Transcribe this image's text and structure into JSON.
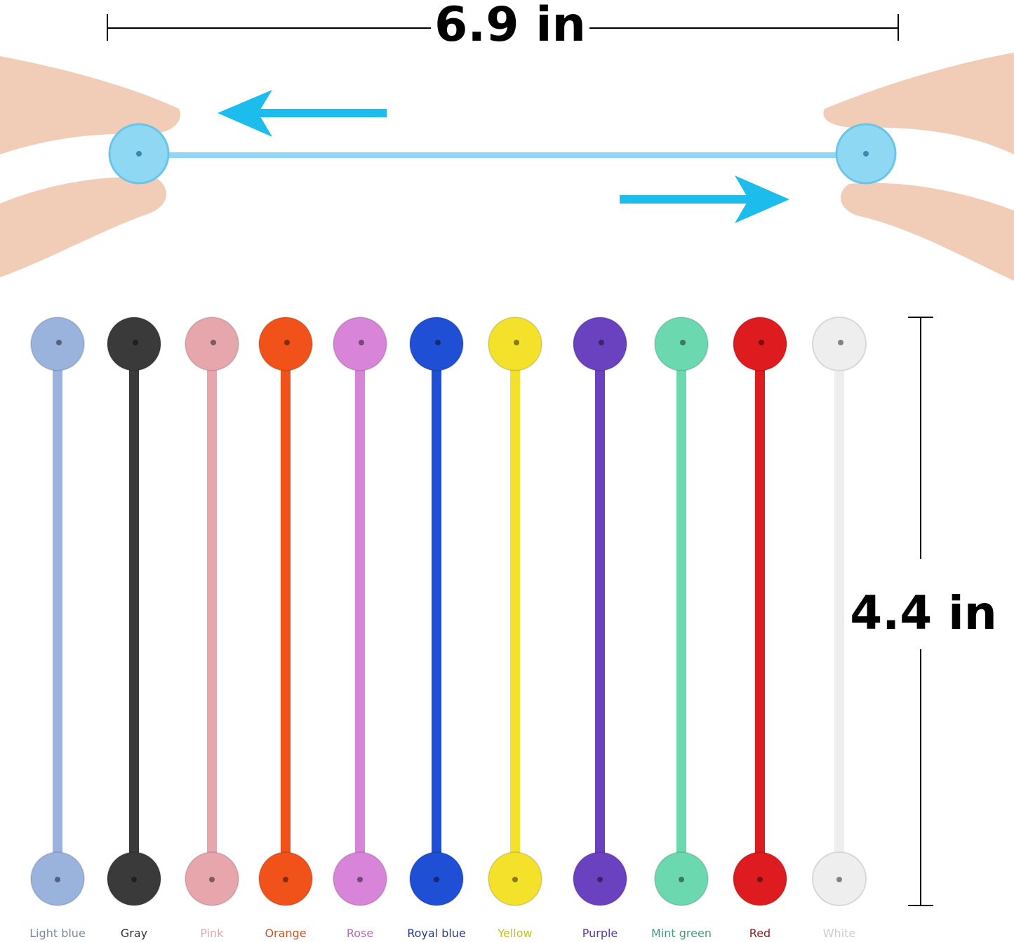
{
  "dimensions": {
    "length_label": "6.9 in",
    "height_label": "4.4 in"
  },
  "demo_strap_color": "#8fd8f4",
  "arrow_color": "#1cbcec",
  "skin_color": "#f1cdb7",
  "straps": [
    {
      "name": "Light blue",
      "color": "#9ab3dd",
      "label_color": "#7a8aa0"
    },
    {
      "name": "Gray",
      "color": "#3a3a3a",
      "label_color": "#333333"
    },
    {
      "name": "Pink",
      "color": "#e6a6ac",
      "label_color": "#e0aab0"
    },
    {
      "name": "Orange",
      "color": "#f0521a",
      "label_color": "#c0582a"
    },
    {
      "name": "Rose",
      "color": "#d884d8",
      "label_color": "#b070b0"
    },
    {
      "name": "Royal blue",
      "color": "#1f4fd4",
      "label_color": "#2a3a8a"
    },
    {
      "name": "Yellow",
      "color": "#f4e12a",
      "label_color": "#c8c020"
    },
    {
      "name": "Purple",
      "color": "#6a42c0",
      "label_color": "#5a3a9a"
    },
    {
      "name": "Mint green",
      "color": "#6cd8b0",
      "label_color": "#4a9a80"
    },
    {
      "name": "Red",
      "color": "#de1b1f",
      "label_color": "#8a2020"
    },
    {
      "name": "White",
      "color": "#eeeeee",
      "label_color": "#cccccc"
    }
  ]
}
